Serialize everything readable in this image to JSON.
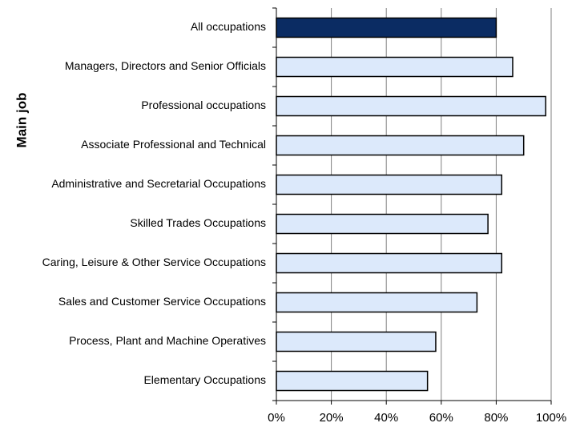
{
  "chart_data": {
    "type": "barh",
    "y_label": "Main job",
    "categories": [
      "All occupations",
      "Managers, Directors and Senior Officials",
      "Professional occupations",
      "Associate Professional and Technical",
      "Administrative and Secretarial Occupations",
      "Skilled Trades Occupations",
      "Caring, Leisure & Other Service Occupations",
      "Sales and Customer Service Occupations",
      "Process, Plant and Machine Operatives",
      "Elementary Occupations"
    ],
    "values": [
      80,
      86,
      98,
      90,
      82,
      77,
      82,
      73,
      58,
      55
    ],
    "colors": [
      "#0b2c63",
      "#dce9fb",
      "#dce9fb",
      "#dce9fb",
      "#dce9fb",
      "#dce9fb",
      "#dce9fb",
      "#dce9fb",
      "#dce9fb",
      "#dce9fb"
    ],
    "xlim": [
      0,
      100
    ],
    "xticks": [
      {
        "value": 0,
        "label": "0%"
      },
      {
        "value": 20,
        "label": "20%"
      },
      {
        "value": 40,
        "label": "40%"
      },
      {
        "value": 60,
        "label": "60%"
      },
      {
        "value": 80,
        "label": "80%"
      },
      {
        "value": 100,
        "label": "100%"
      }
    ],
    "grid": true
  }
}
